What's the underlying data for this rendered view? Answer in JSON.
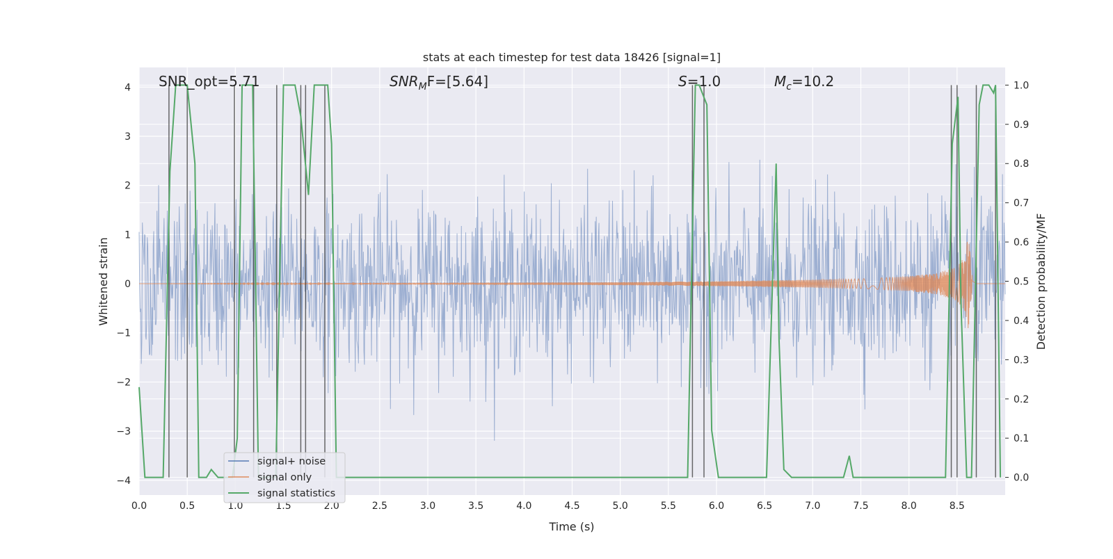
{
  "chart_data": {
    "type": "line",
    "title": "stats at each timestep for test data 18426 [signal=1]",
    "xlabel": "Time (s)",
    "ylabel": "Whitened strain",
    "y2label": "Detection probability/MF",
    "xlim": [
      0.0,
      9.0
    ],
    "ylim": [
      -4.3,
      4.4
    ],
    "y2lim": [
      -0.045,
      1.045
    ],
    "xticks": [
      "0.0",
      "0.5",
      "1.0",
      "1.5",
      "2.0",
      "2.5",
      "3.0",
      "3.5",
      "4.0",
      "4.5",
      "5.0",
      "5.5",
      "6.0",
      "6.5",
      "7.0",
      "7.5",
      "8.0",
      "8.5"
    ],
    "yticks": [
      "4",
      "3",
      "2",
      "1",
      "0",
      "−1",
      "−2",
      "−3",
      "−4"
    ],
    "y2ticks": [
      "1.0",
      "0.9",
      "0.8",
      "0.7",
      "0.6",
      "0.5",
      "0.4",
      "0.3",
      "0.2",
      "0.1",
      "0.0"
    ],
    "grid": true,
    "legend_placement": "lower-left",
    "annotations": {
      "snr_opt": "SNR_opt=5.71",
      "snr_mf_sym": "SNR",
      "snr_mf_sub": "M",
      "snr_mf_rest": "F=[5.64]",
      "s_sym": "S",
      "s_rest": "=1.0",
      "mc_sym": "M",
      "mc_sub": "c",
      "mc_rest": "=10.2"
    },
    "series": [
      {
        "name": "signal+ noise",
        "color": "#4c72b0",
        "envelope_description": "dense whitened noise, approximately between -3.6 and 4.0",
        "noise_std": 0.85
      },
      {
        "name": "signal only",
        "color": "#dd8452",
        "description": "chirp growing toward merger near t=8.6s",
        "amplitude_points": [
          [
            0.0,
            0.0
          ],
          [
            5.0,
            0.03
          ],
          [
            6.0,
            0.05
          ],
          [
            7.0,
            0.08
          ],
          [
            7.5,
            0.1
          ],
          [
            8.0,
            0.15
          ],
          [
            8.3,
            0.22
          ],
          [
            8.5,
            0.35
          ],
          [
            8.58,
            0.55
          ],
          [
            8.62,
            1.05
          ],
          [
            8.65,
            0.2
          ],
          [
            8.7,
            0.0
          ]
        ]
      },
      {
        "name": "signal statistics",
        "color": "#55a868",
        "axis": "right",
        "points": [
          [
            0.0,
            0.23
          ],
          [
            0.06,
            0.0
          ],
          [
            0.25,
            0.0
          ],
          [
            0.32,
            0.78
          ],
          [
            0.38,
            1.0
          ],
          [
            0.5,
            1.0
          ],
          [
            0.58,
            0.8
          ],
          [
            0.62,
            0.0
          ],
          [
            0.7,
            0.0
          ],
          [
            0.75,
            0.02
          ],
          [
            0.82,
            0.0
          ],
          [
            0.97,
            0.0
          ],
          [
            1.02,
            0.1
          ],
          [
            1.07,
            1.0
          ],
          [
            1.18,
            1.0
          ],
          [
            1.24,
            0.0
          ],
          [
            1.42,
            0.0
          ],
          [
            1.5,
            1.0
          ],
          [
            1.62,
            1.0
          ],
          [
            1.68,
            0.92
          ],
          [
            1.76,
            0.72
          ],
          [
            1.82,
            1.0
          ],
          [
            1.88,
            1.0
          ],
          [
            1.96,
            1.0
          ],
          [
            2.0,
            0.85
          ],
          [
            2.05,
            0.0
          ],
          [
            5.7,
            0.0
          ],
          [
            5.78,
            1.0
          ],
          [
            5.82,
            1.0
          ],
          [
            5.9,
            0.95
          ],
          [
            5.95,
            0.12
          ],
          [
            6.02,
            0.0
          ],
          [
            6.52,
            0.0
          ],
          [
            6.62,
            0.8
          ],
          [
            6.65,
            0.35
          ],
          [
            6.7,
            0.02
          ],
          [
            6.78,
            0.0
          ],
          [
            7.32,
            0.0
          ],
          [
            7.38,
            0.055
          ],
          [
            7.42,
            0.0
          ],
          [
            8.38,
            0.0
          ],
          [
            8.45,
            0.85
          ],
          [
            8.51,
            0.97
          ],
          [
            8.54,
            0.45
          ],
          [
            8.6,
            0.0
          ],
          [
            8.65,
            0.0
          ],
          [
            8.73,
            0.95
          ],
          [
            8.77,
            1.0
          ],
          [
            8.83,
            1.0
          ],
          [
            8.88,
            0.98
          ],
          [
            8.9,
            1.0
          ],
          [
            8.95,
            0.0
          ]
        ]
      }
    ],
    "vertical_markers_x": [
      0.31,
      0.5,
      0.99,
      1.19,
      1.43,
      1.68,
      1.73,
      1.93,
      5.75,
      5.87,
      8.44,
      8.5,
      8.7,
      8.9
    ]
  }
}
